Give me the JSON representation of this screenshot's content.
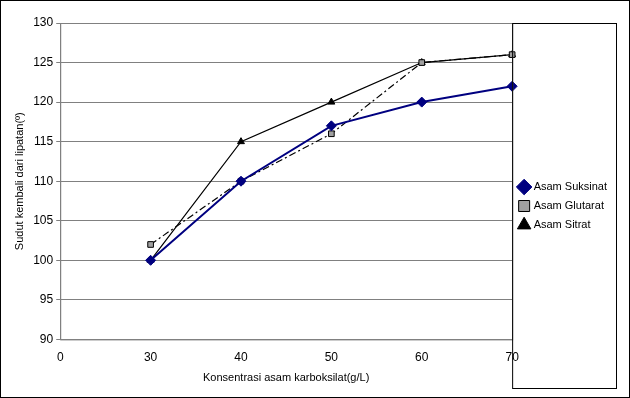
{
  "chart_data": {
    "type": "line",
    "x_label": "Konsentrasi asam karboksilat(g/L)",
    "y_label": "Sudut kembali dari lipatan(º)",
    "categories": [
      "0",
      "30",
      "40",
      "50",
      "60",
      "70"
    ],
    "series": [
      {
        "name": "Asam Suksinat",
        "color": "#000080",
        "marker": "diamond",
        "line_style": "solid",
        "values": [
          null,
          100,
          110,
          117,
          120,
          122
        ]
      },
      {
        "name": "Asam Glutarat",
        "color": "#000000",
        "marker": "square",
        "line_style": "dashdot",
        "values": [
          null,
          102,
          110,
          116,
          125,
          126
        ]
      },
      {
        "name": "Asam Sitrat",
        "color": "#000000",
        "marker": "triangle",
        "line_style": "solid",
        "values": [
          null,
          100,
          115,
          120,
          125,
          126
        ]
      }
    ],
    "ylim": [
      90,
      130
    ],
    "yticks": [
      90,
      95,
      100,
      105,
      110,
      115,
      120,
      125,
      130
    ],
    "grid": true,
    "legend": "right"
  }
}
